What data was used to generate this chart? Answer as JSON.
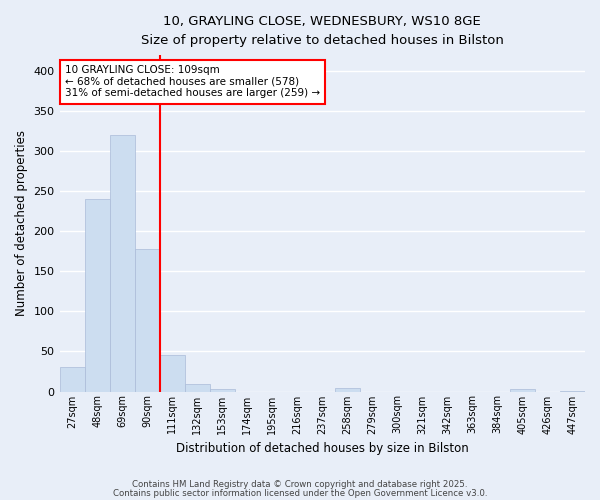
{
  "title_line1": "10, GRAYLING CLOSE, WEDNESBURY, WS10 8GE",
  "title_line2": "Size of property relative to detached houses in Bilston",
  "xlabel": "Distribution of detached houses by size in Bilston",
  "ylabel": "Number of detached properties",
  "bar_color": "#ccddf0",
  "bar_edge_color": "#aabbd8",
  "background_color": "#e8eef8",
  "grid_color": "#ffffff",
  "vline_color": "red",
  "annotation_box_text": "10 GRAYLING CLOSE: 109sqm\n← 68% of detached houses are smaller (578)\n31% of semi-detached houses are larger (259) →",
  "annotation_box_color": "white",
  "annotation_box_edge": "red",
  "categories": [
    "27sqm",
    "48sqm",
    "69sqm",
    "90sqm",
    "111sqm",
    "132sqm",
    "153sqm",
    "174sqm",
    "195sqm",
    "216sqm",
    "237sqm",
    "258sqm",
    "279sqm",
    "300sqm",
    "321sqm",
    "342sqm",
    "363sqm",
    "384sqm",
    "405sqm",
    "426sqm",
    "447sqm"
  ],
  "values": [
    30,
    240,
    320,
    178,
    46,
    10,
    3,
    0,
    0,
    0,
    0,
    5,
    0,
    0,
    0,
    0,
    0,
    0,
    3,
    0,
    1
  ],
  "ylim": [
    0,
    420
  ],
  "yticks": [
    0,
    50,
    100,
    150,
    200,
    250,
    300,
    350,
    400
  ],
  "vline_index": 3.5,
  "footer_line1": "Contains HM Land Registry data © Crown copyright and database right 2025.",
  "footer_line2": "Contains public sector information licensed under the Open Government Licence v3.0."
}
